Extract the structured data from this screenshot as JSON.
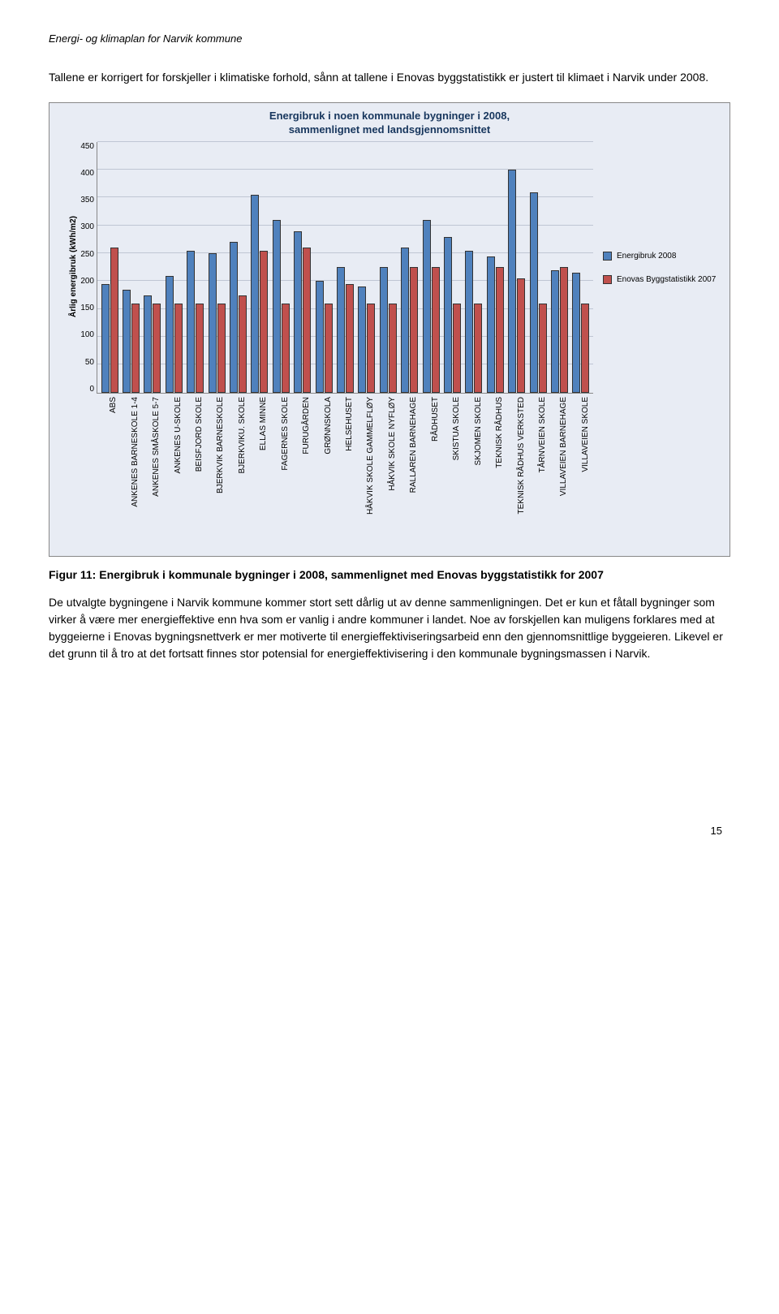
{
  "header": "Energi- og klimaplan for Narvik kommune",
  "intro": "Tallene er korrigert for forskjeller i klimatiske forhold, sånn at tallene i Enovas byggstatistikk er justert til klimaet i Narvik under 2008.",
  "chart": {
    "type": "bar",
    "title_line1": "Energibruk i noen kommunale bygninger i 2008,",
    "title_line2": "sammenlignet med landsgjennomsnittet",
    "ylabel": "Årlig energibruk (kWh/m2)",
    "ylim": [
      0,
      450
    ],
    "ytick_step": 50,
    "yticks": [
      450,
      400,
      350,
      300,
      250,
      200,
      150,
      100,
      50,
      0
    ],
    "background_color": "#e8ecf4",
    "grid_color": "#bfc6d4",
    "series": [
      {
        "name": "Energibruk 2008",
        "color": "#4f81bd"
      },
      {
        "name": "Enovas Byggstatistikk 2007",
        "color": "#c0504d"
      }
    ],
    "categories": [
      {
        "label": "ABS",
        "v1": 195,
        "v2": 260
      },
      {
        "label": "ANKENES BARNESKOLE 1-4",
        "v1": 185,
        "v2": 160
      },
      {
        "label": "ANKENES SMÅSKOLE 5-7",
        "v1": 175,
        "v2": 160
      },
      {
        "label": "ANKENES U-SKOLE",
        "v1": 210,
        "v2": 160
      },
      {
        "label": "BEISFJORD SKOLE",
        "v1": 255,
        "v2": 160
      },
      {
        "label": "BJERKVIK BARNESKOLE",
        "v1": 250,
        "v2": 160
      },
      {
        "label": "BJERKVIKU. SKOLE",
        "v1": 270,
        "v2": 175
      },
      {
        "label": "ELLAS MINNE",
        "v1": 355,
        "v2": 255
      },
      {
        "label": "FAGERNES SKOLE",
        "v1": 310,
        "v2": 160
      },
      {
        "label": "FURUGÅRDEN",
        "v1": 290,
        "v2": 260
      },
      {
        "label": "GRØNNSKOLA",
        "v1": 200,
        "v2": 160
      },
      {
        "label": "HELSEHUSET",
        "v1": 225,
        "v2": 195
      },
      {
        "label": "HÅKVIK SKOLE GAMMELFLØY",
        "v1": 190,
        "v2": 160
      },
      {
        "label": "HÅKVIK SKOLE NYFLØY",
        "v1": 225,
        "v2": 160
      },
      {
        "label": "RALLAREN BARNEHAGE",
        "v1": 260,
        "v2": 225
      },
      {
        "label": "RÅDHUSET",
        "v1": 310,
        "v2": 225
      },
      {
        "label": "SKISTUA SKOLE",
        "v1": 280,
        "v2": 160
      },
      {
        "label": "SKJOMEN SKOLE",
        "v1": 255,
        "v2": 160
      },
      {
        "label": "TEKNISK RÅDHUS",
        "v1": 245,
        "v2": 225
      },
      {
        "label": "TEKNISK RÅDHUS VERKSTED",
        "v1": 400,
        "v2": 205
      },
      {
        "label": "TÅRNVEIEN SKOLE",
        "v1": 360,
        "v2": 160
      },
      {
        "label": "VILLAVEIEN BARNEHAGE",
        "v1": 220,
        "v2": 225
      },
      {
        "label": "VILLAVEIEN SKOLE",
        "v1": 215,
        "v2": 160
      }
    ]
  },
  "caption": "Figur 11: Energibruk i kommunale bygninger i 2008, sammenlignet med Enovas byggstatistikk for 2007",
  "body": "De utvalgte bygningene i Narvik kommune kommer stort sett dårlig ut av denne sammenligningen. Det er kun et fåtall bygninger som virker å være mer energieffektive enn hva som er vanlig i andre kommuner i landet. Noe av forskjellen kan muligens forklares med at byggeierne i Enovas bygningsnettverk er mer motiverte til energieffektiviseringsarbeid enn den gjennomsnittlige byggeieren. Likevel er det grunn til å tro at det fortsatt finnes stor potensial for energieffektivisering i den kommunale bygningsmassen i Narvik.",
  "page_number": "15"
}
